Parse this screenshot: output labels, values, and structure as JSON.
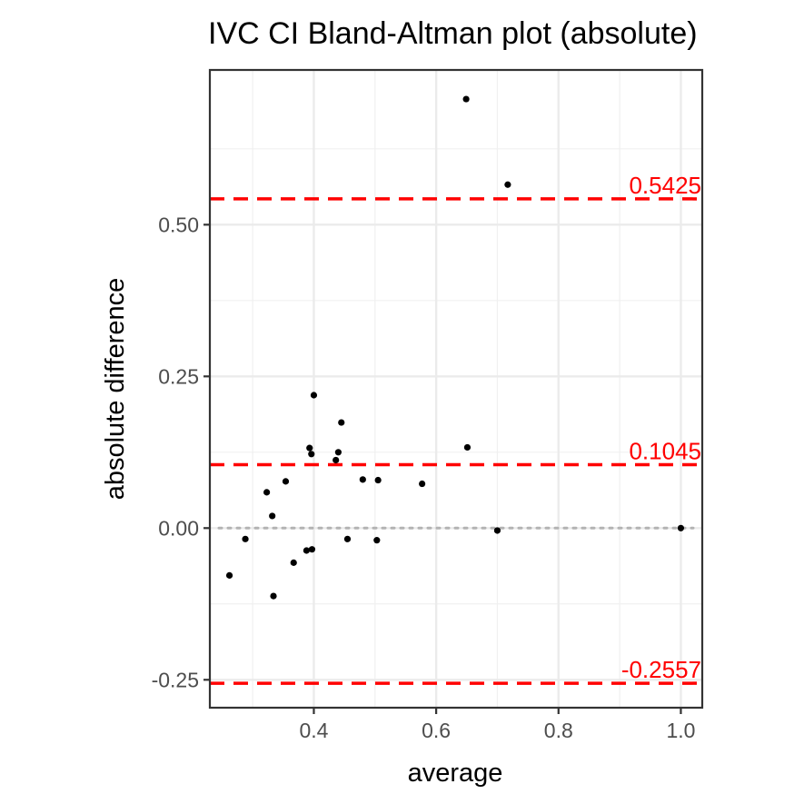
{
  "chart_data": {
    "type": "scatter",
    "title": "IVC CI   Bland-Altman plot (absolute)",
    "xlabel": "average",
    "ylabel": "absolute difference",
    "xlim": [
      0.23,
      1.035
    ],
    "ylim": [
      -0.296,
      0.755
    ],
    "x_ticks": [
      {
        "value": 0.4,
        "label": "0.4"
      },
      {
        "value": 0.6,
        "label": "0.6"
      },
      {
        "value": 0.8,
        "label": "0.8"
      },
      {
        "value": 1.0,
        "label": "1.0"
      }
    ],
    "y_ticks": [
      {
        "value": -0.25,
        "label": "-0.25"
      },
      {
        "value": 0.0,
        "label": "0.00"
      },
      {
        "value": 0.25,
        "label": "0.25"
      },
      {
        "value": 0.5,
        "label": "0.50"
      }
    ],
    "grid": true,
    "zero_line": {
      "value": 0.0,
      "color": "#b3b3b3"
    },
    "reference_lines": [
      {
        "value": 0.5425,
        "label": "0.5425",
        "color": "#ff0000"
      },
      {
        "value": 0.1045,
        "label": "0.1045",
        "color": "#ff0000"
      },
      {
        "value": -0.2557,
        "label": "-0.2557",
        "color": "#ff0000"
      }
    ],
    "point_color": "#000000",
    "points": [
      {
        "x": 0.262,
        "y": -0.078
      },
      {
        "x": 0.288,
        "y": -0.018
      },
      {
        "x": 0.323,
        "y": 0.059
      },
      {
        "x": 0.332,
        "y": 0.02
      },
      {
        "x": 0.334,
        "y": -0.112
      },
      {
        "x": 0.354,
        "y": 0.077
      },
      {
        "x": 0.367,
        "y": -0.057
      },
      {
        "x": 0.388,
        "y": -0.037
      },
      {
        "x": 0.393,
        "y": 0.132
      },
      {
        "x": 0.396,
        "y": 0.122
      },
      {
        "x": 0.397,
        "y": -0.035
      },
      {
        "x": 0.4,
        "y": 0.219
      },
      {
        "x": 0.436,
        "y": 0.112
      },
      {
        "x": 0.44,
        "y": 0.125
      },
      {
        "x": 0.445,
        "y": 0.174
      },
      {
        "x": 0.455,
        "y": -0.018
      },
      {
        "x": 0.48,
        "y": 0.08
      },
      {
        "x": 0.503,
        "y": -0.02
      },
      {
        "x": 0.505,
        "y": 0.079
      },
      {
        "x": 0.577,
        "y": 0.073
      },
      {
        "x": 0.649,
        "y": 0.707
      },
      {
        "x": 0.651,
        "y": 0.133
      },
      {
        "x": 0.7,
        "y": -0.004
      },
      {
        "x": 0.717,
        "y": 0.566
      },
      {
        "x": 1.0,
        "y": 0.0
      }
    ]
  }
}
